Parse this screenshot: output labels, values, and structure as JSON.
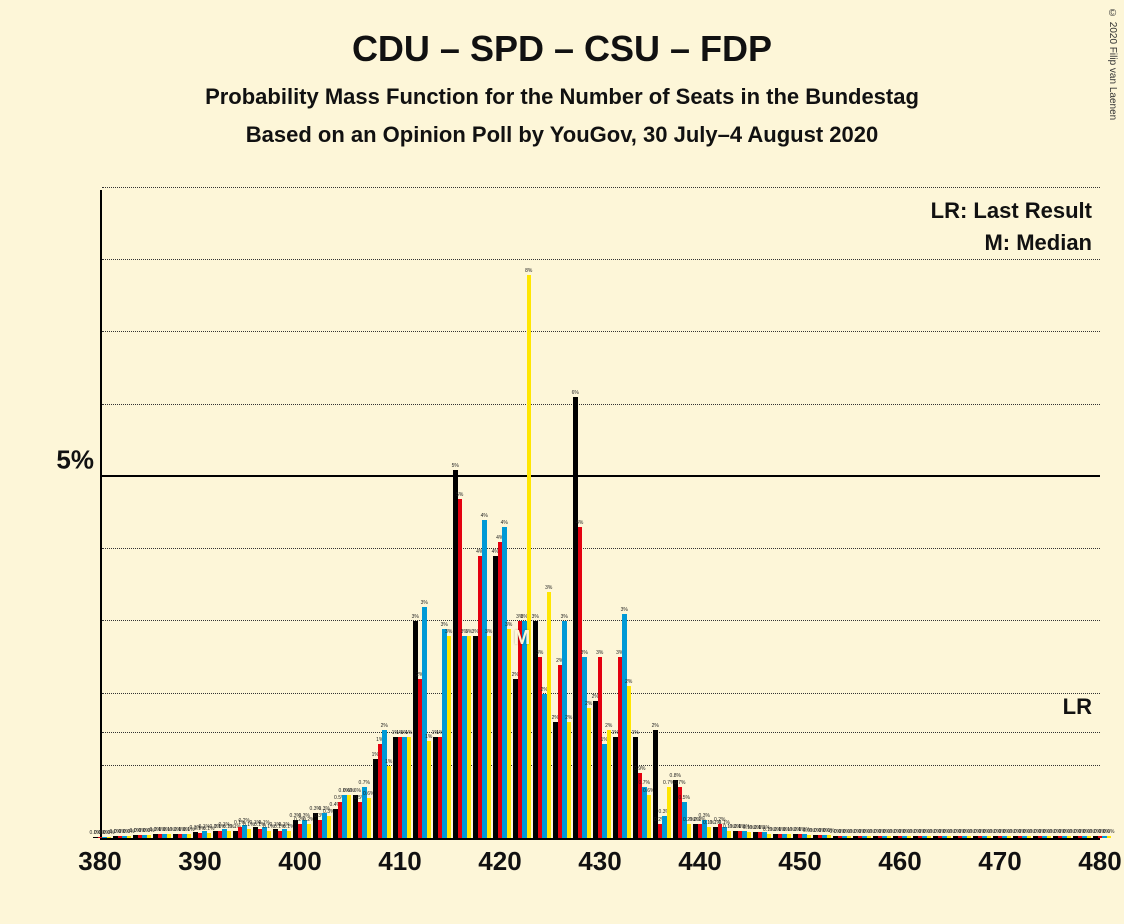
{
  "copyright": "© 2020 Filip van Laenen",
  "title": "CDU – SPD – CSU – FDP",
  "subtitle1": "Probability Mass Function for the Number of Seats in the Bundestag",
  "subtitle2": "Based on an Opinion Poll by YouGov, 30 July–4 August 2020",
  "legend": {
    "lr": "LR: Last Result",
    "m": "M: Median"
  },
  "lr_marker": "LR",
  "median_marker": "M",
  "chart": {
    "type": "grouped-bar",
    "background_color": "#fdf6d8",
    "axis_color": "#000000",
    "grid_color": "#333333",
    "x_min": 380,
    "x_max": 480,
    "x_tick_step": 10,
    "x_ticks": [
      380,
      390,
      400,
      410,
      420,
      430,
      440,
      450,
      460,
      470,
      480
    ],
    "y_min": 0,
    "y_max": 9,
    "y_tick_step": 1,
    "y_major_ticks": [
      5
    ],
    "y_major_label": "5%",
    "lr_value": 1.45,
    "median_x": 422,
    "series_colors": {
      "cdu": "#000000",
      "spd": "#e3000f",
      "csu": "#0099d6",
      "fdp": "#ffe600"
    },
    "bar_group_width_units": 2.0,
    "bar_width_units": 0.45,
    "groups": [
      {
        "x": 380,
        "cdu": 0.02,
        "spd": 0.02,
        "csu": 0.02,
        "fdp": 0.02
      },
      {
        "x": 382,
        "cdu": 0.03,
        "spd": 0.03,
        "csu": 0.03,
        "fdp": 0.03
      },
      {
        "x": 384,
        "cdu": 0.04,
        "spd": 0.04,
        "csu": 0.04,
        "fdp": 0.04
      },
      {
        "x": 386,
        "cdu": 0.05,
        "spd": 0.05,
        "csu": 0.05,
        "fdp": 0.05
      },
      {
        "x": 388,
        "cdu": 0.06,
        "spd": 0.05,
        "csu": 0.06,
        "fdp": 0.05
      },
      {
        "x": 390,
        "cdu": 0.08,
        "spd": 0.07,
        "csu": 0.1,
        "fdp": 0.07
      },
      {
        "x": 392,
        "cdu": 0.1,
        "spd": 0.1,
        "csu": 0.12,
        "fdp": 0.1
      },
      {
        "x": 394,
        "cdu": 0.1,
        "spd": 0.15,
        "csu": 0.18,
        "fdp": 0.12
      },
      {
        "x": 396,
        "cdu": 0.15,
        "spd": 0.12,
        "csu": 0.15,
        "fdp": 0.1
      },
      {
        "x": 398,
        "cdu": 0.12,
        "spd": 0.1,
        "csu": 0.12,
        "fdp": 0.1
      },
      {
        "x": 400,
        "cdu": 0.25,
        "spd": 0.2,
        "csu": 0.25,
        "fdp": 0.2
      },
      {
        "x": 402,
        "cdu": 0.35,
        "spd": 0.25,
        "csu": 0.35,
        "fdp": 0.3
      },
      {
        "x": 404,
        "cdu": 0.4,
        "spd": 0.5,
        "csu": 0.6,
        "fdp": 0.6
      },
      {
        "x": 406,
        "cdu": 0.6,
        "spd": 0.5,
        "csu": 0.7,
        "fdp": 0.55
      },
      {
        "x": 408,
        "cdu": 1.1,
        "spd": 1.3,
        "csu": 1.5,
        "fdp": 1.0
      },
      {
        "x": 410,
        "cdu": 1.4,
        "spd": 1.4,
        "csu": 1.4,
        "fdp": 1.4
      },
      {
        "x": 412,
        "cdu": 3.0,
        "spd": 2.2,
        "csu": 3.2,
        "fdp": 1.35
      },
      {
        "x": 414,
        "cdu": 1.4,
        "spd": 1.4,
        "csu": 2.9,
        "fdp": 2.8
      },
      {
        "x": 416,
        "cdu": 5.1,
        "spd": 4.7,
        "csu": 2.8,
        "fdp": 2.8
      },
      {
        "x": 418,
        "cdu": 2.8,
        "spd": 3.9,
        "csu": 4.4,
        "fdp": 2.8
      },
      {
        "x": 420,
        "cdu": 3.9,
        "spd": 4.1,
        "csu": 4.3,
        "fdp": 2.9
      },
      {
        "x": 422,
        "cdu": 2.2,
        "spd": 3.0,
        "csu": 3.0,
        "fdp": 7.8
      },
      {
        "x": 424,
        "cdu": 3.0,
        "spd": 2.5,
        "csu": 2.0,
        "fdp": 3.4
      },
      {
        "x": 426,
        "cdu": 1.6,
        "spd": 2.4,
        "csu": 3.0,
        "fdp": 1.6
      },
      {
        "x": 428,
        "cdu": 6.1,
        "spd": 4.3,
        "csu": 2.5,
        "fdp": 1.8
      },
      {
        "x": 430,
        "cdu": 1.9,
        "spd": 2.5,
        "csu": 1.3,
        "fdp": 1.5
      },
      {
        "x": 432,
        "cdu": 1.4,
        "spd": 2.5,
        "csu": 3.1,
        "fdp": 2.1
      },
      {
        "x": 434,
        "cdu": 1.4,
        "spd": 0.9,
        "csu": 0.7,
        "fdp": 0.6
      },
      {
        "x": 436,
        "cdu": 1.5,
        "spd": 0.2,
        "csu": 0.3,
        "fdp": 0.7
      },
      {
        "x": 438,
        "cdu": 0.8,
        "spd": 0.7,
        "csu": 0.5,
        "fdp": 0.2
      },
      {
        "x": 440,
        "cdu": 0.2,
        "spd": 0.2,
        "csu": 0.25,
        "fdp": 0.15
      },
      {
        "x": 442,
        "cdu": 0.15,
        "spd": 0.2,
        "csu": 0.15,
        "fdp": 0.1
      },
      {
        "x": 444,
        "cdu": 0.1,
        "spd": 0.1,
        "csu": 0.1,
        "fdp": 0.08
      },
      {
        "x": 446,
        "cdu": 0.08,
        "spd": 0.08,
        "csu": 0.08,
        "fdp": 0.06
      },
      {
        "x": 448,
        "cdu": 0.06,
        "spd": 0.06,
        "csu": 0.06,
        "fdp": 0.05
      },
      {
        "x": 450,
        "cdu": 0.05,
        "spd": 0.05,
        "csu": 0.05,
        "fdp": 0.04
      },
      {
        "x": 452,
        "cdu": 0.04,
        "spd": 0.04,
        "csu": 0.04,
        "fdp": 0.04
      },
      {
        "x": 454,
        "cdu": 0.03,
        "spd": 0.03,
        "csu": 0.03,
        "fdp": 0.03
      },
      {
        "x": 456,
        "cdu": 0.03,
        "spd": 0.03,
        "csu": 0.03,
        "fdp": 0.03
      },
      {
        "x": 458,
        "cdu": 0.03,
        "spd": 0.03,
        "csu": 0.03,
        "fdp": 0.03
      },
      {
        "x": 460,
        "cdu": 0.03,
        "spd": 0.03,
        "csu": 0.03,
        "fdp": 0.03
      },
      {
        "x": 462,
        "cdu": 0.03,
        "spd": 0.03,
        "csu": 0.03,
        "fdp": 0.03
      },
      {
        "x": 464,
        "cdu": 0.03,
        "spd": 0.03,
        "csu": 0.03,
        "fdp": 0.03
      },
      {
        "x": 466,
        "cdu": 0.03,
        "spd": 0.03,
        "csu": 0.03,
        "fdp": 0.03
      },
      {
        "x": 468,
        "cdu": 0.03,
        "spd": 0.03,
        "csu": 0.03,
        "fdp": 0.03
      },
      {
        "x": 470,
        "cdu": 0.03,
        "spd": 0.03,
        "csu": 0.03,
        "fdp": 0.03
      },
      {
        "x": 472,
        "cdu": 0.03,
        "spd": 0.03,
        "csu": 0.03,
        "fdp": 0.03
      },
      {
        "x": 474,
        "cdu": 0.03,
        "spd": 0.03,
        "csu": 0.03,
        "fdp": 0.03
      },
      {
        "x": 476,
        "cdu": 0.03,
        "spd": 0.03,
        "csu": 0.03,
        "fdp": 0.03
      },
      {
        "x": 478,
        "cdu": 0.03,
        "spd": 0.03,
        "csu": 0.03,
        "fdp": 0.03
      },
      {
        "x": 480,
        "cdu": 0.03,
        "spd": 0.03,
        "csu": 0.03,
        "fdp": 0.03
      }
    ]
  }
}
